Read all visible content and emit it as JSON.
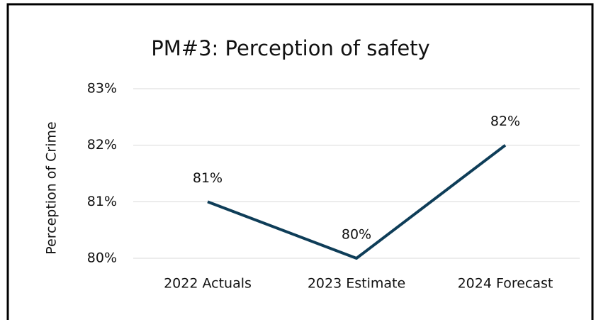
{
  "chart_data": {
    "type": "line",
    "title": "PM#3: Perception of safety",
    "y_label": "Perception of Crime",
    "categories": [
      "2022 Actuals",
      "2023 Estimate",
      "2024 Forecast"
    ],
    "series": [
      {
        "name": "Perception of Crime",
        "color": "#0e3d58",
        "values": [
          81,
          80,
          82
        ],
        "value_labels": [
          "81%",
          "80%",
          "82%"
        ]
      }
    ],
    "ylim": [
      80,
      83
    ],
    "yticks": [
      {
        "value": 80,
        "label": "80%"
      },
      {
        "value": 81,
        "label": "81%"
      },
      {
        "value": 82,
        "label": "82%"
      },
      {
        "value": 83,
        "label": "83%"
      }
    ],
    "grid": true
  }
}
